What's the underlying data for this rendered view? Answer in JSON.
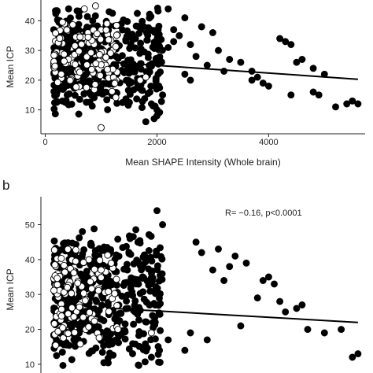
{
  "chart_data": [
    {
      "panel_label": "",
      "type": "scatter",
      "xlabel": "Mean SHAPE Intensity  (Whole brain)",
      "ylabel": "Mean ICP",
      "xlim": [
        -50,
        5700
      ],
      "ylim": [
        3,
        47
      ],
      "x_ticks": [
        0,
        2000,
        4000
      ],
      "y_ticks": [
        10,
        20,
        30,
        40
      ],
      "grid": false,
      "trendline": {
        "x": [
          1200,
          5600
        ],
        "y": [
          26,
          20.3
        ]
      },
      "series": [
        {
          "marker": "filled",
          "seed": 11,
          "points": [
            [
              2300,
              37
            ],
            [
              2400,
              35
            ],
            [
              2600,
              32
            ],
            [
              2800,
              38
            ],
            [
              3000,
              36
            ],
            [
              3100,
              30
            ],
            [
              2500,
              41
            ],
            [
              2200,
              44
            ],
            [
              2700,
              28
            ],
            [
              3300,
              27
            ],
            [
              3500,
              26
            ],
            [
              3700,
              23
            ],
            [
              3800,
              21
            ],
            [
              3900,
              19
            ],
            [
              4000,
              18
            ],
            [
              4200,
              34
            ],
            [
              4300,
              33
            ],
            [
              4400,
              32
            ],
            [
              4500,
              26
            ],
            [
              4600,
              27
            ],
            [
              4800,
              24
            ],
            [
              5000,
              22
            ],
            [
              5400,
              12
            ],
            [
              5500,
              13
            ],
            [
              5600,
              12
            ],
            [
              5200,
              11
            ],
            [
              4800,
              16
            ],
            [
              4900,
              15
            ],
            [
              4400,
              15
            ],
            [
              2600,
              20
            ],
            [
              2500,
              22
            ],
            [
              2900,
              25
            ],
            [
              3200,
              23
            ],
            [
              1900,
              12
            ],
            [
              2000,
              10
            ],
            [
              2100,
              15
            ],
            [
              2000,
              8
            ],
            [
              1950,
              7
            ],
            [
              1800,
              6
            ],
            [
              3700,
              20
            ],
            [
              2200,
              31
            ],
            [
              2300,
              33
            ]
          ]
        },
        {
          "marker": "open",
          "seed": 29,
          "points": [
            [
              1000,
              4
            ],
            [
              1700,
              20
            ],
            [
              1800,
              21
            ],
            [
              900,
              45
            ],
            [
              700,
              44
            ]
          ]
        }
      ],
      "clusters": [
        {
          "marker": "filled",
          "n": 420,
          "x_range": [
            150,
            2100
          ],
          "y_range": [
            8,
            46
          ],
          "seed": 3
        },
        {
          "marker": "open",
          "n": 110,
          "x_range": [
            150,
            1300
          ],
          "y_range": [
            14,
            42
          ],
          "seed": 7
        }
      ]
    },
    {
      "panel_label": "b",
      "type": "scatter",
      "xlabel": "",
      "ylabel": "Mean ICP",
      "xlim": [
        -50,
        5700
      ],
      "ylim": [
        7.5,
        58
      ],
      "x_ticks": [],
      "y_ticks": [
        10,
        20,
        30,
        40,
        50
      ],
      "grid": false,
      "annotation": "R= −0.16,  p<0.0001",
      "trendline": {
        "x": [
          1200,
          5600
        ],
        "y": [
          26,
          22
        ]
      },
      "series": [
        {
          "marker": "filled",
          "seed": 41,
          "points": [
            [
              2000,
              54
            ],
            [
              2100,
              50
            ],
            [
              3200,
              34
            ],
            [
              3600,
              39
            ],
            [
              3900,
              34
            ],
            [
              4000,
              35
            ],
            [
              4100,
              33
            ],
            [
              4200,
              28
            ],
            [
              4500,
              26
            ],
            [
              4700,
              20
            ],
            [
              5000,
              19
            ],
            [
              5300,
              20
            ],
            [
              5500,
              12
            ],
            [
              4600,
              27
            ],
            [
              4300,
              25
            ],
            [
              3500,
              21
            ],
            [
              3000,
              37
            ],
            [
              2800,
              42
            ],
            [
              2700,
              45
            ],
            [
              3100,
              43
            ],
            [
              3300,
              38
            ],
            [
              3400,
              41
            ],
            [
              3800,
              29
            ],
            [
              2600,
              19
            ],
            [
              2900,
              17
            ],
            [
              2500,
              14
            ],
            [
              1900,
              12
            ],
            [
              2200,
              17
            ],
            [
              5600,
              13
            ]
          ]
        },
        {
          "marker": "open",
          "seed": 53,
          "points": [
            [
              1900,
              19
            ],
            [
              1300,
              20
            ],
            [
              1000,
              37
            ]
          ]
        }
      ],
      "clusters": [
        {
          "marker": "filled",
          "n": 460,
          "x_range": [
            150,
            2100
          ],
          "y_range": [
            8,
            50
          ],
          "seed": 13
        },
        {
          "marker": "open",
          "n": 110,
          "x_range": [
            150,
            1300
          ],
          "y_range": [
            15,
            44
          ],
          "seed": 17
        }
      ]
    }
  ]
}
